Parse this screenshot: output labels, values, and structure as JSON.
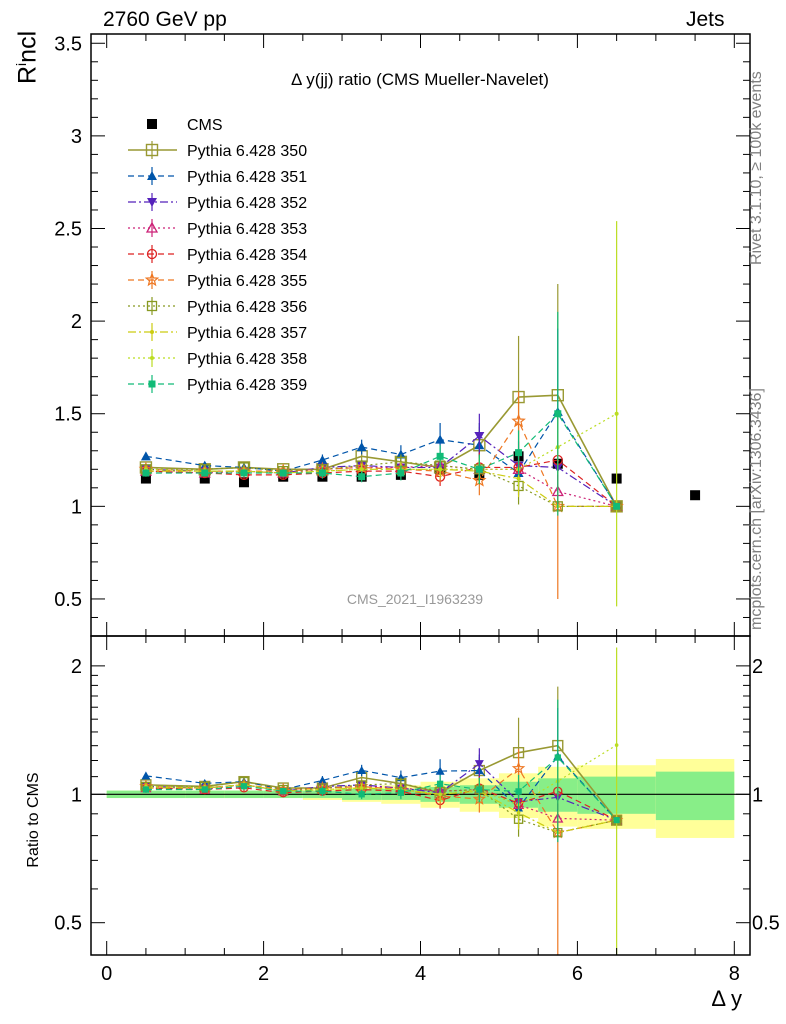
{
  "header": {
    "left": "2760 GeV pp",
    "right": "Jets"
  },
  "side_labels": {
    "rivet": "Rivet 3.1.10, ≥ 100k events",
    "mcplots": "mcplots.cern.ch [arXiv:1306.3436]"
  },
  "watermark": "CMS_2021_I1963239",
  "chart_data": [
    {
      "type": "scatter",
      "panel": "main",
      "title": "Δ y(jj) ratio (CMS Mueller-Navelet)",
      "ylabel": "R^incl",
      "xlabel": "Δ y",
      "xlim": [
        -0.2,
        8.2
      ],
      "ylim": [
        0.3,
        3.55
      ],
      "y_ticks": [
        "0.5",
        "1",
        "1.5",
        "2",
        "2.5",
        "3",
        "3.5"
      ],
      "x_ticks": [
        "0",
        "2",
        "4",
        "6",
        "8"
      ],
      "legend_position": "top-left",
      "series": [
        {
          "name": "CMS",
          "color": "#000000",
          "marker": "filled-square",
          "line": "none",
          "x": [
            0.5,
            1.25,
            1.75,
            2.25,
            2.75,
            3.25,
            3.75,
            4.25,
            4.75,
            5.25,
            5.75,
            6.5,
            7.5
          ],
          "y": [
            1.15,
            1.15,
            1.13,
            1.16,
            1.16,
            1.16,
            1.17,
            1.2,
            1.17,
            1.27,
            1.23,
            1.15,
            1.06
          ]
        },
        {
          "name": "Pythia 6.428 350",
          "color": "#999933",
          "marker": "open-square",
          "line": "solid",
          "x": [
            0.5,
            1.25,
            1.75,
            2.25,
            2.75,
            3.25,
            3.75,
            4.25,
            4.75,
            5.25,
            5.75,
            6.5
          ],
          "y": [
            1.21,
            1.2,
            1.21,
            1.2,
            1.2,
            1.27,
            1.24,
            1.21,
            1.33,
            1.59,
            1.6,
            1.0
          ],
          "err": [
            0.02,
            0.02,
            0.02,
            0.02,
            0.03,
            0.03,
            0.04,
            0.06,
            0.1,
            0.33,
            0.6,
            0.0
          ]
        },
        {
          "name": "Pythia 6.428 351",
          "color": "#0055aa",
          "marker": "filled-triangle-up",
          "line": "dashed",
          "x": [
            0.5,
            1.25,
            1.75,
            2.25,
            2.75,
            3.25,
            3.75,
            4.25,
            4.75,
            5.25,
            5.75,
            6.5
          ],
          "y": [
            1.27,
            1.22,
            1.21,
            1.19,
            1.25,
            1.32,
            1.28,
            1.36,
            1.33,
            1.18,
            1.51,
            1.0
          ],
          "err": [
            0.02,
            0.02,
            0.02,
            0.02,
            0.03,
            0.04,
            0.05,
            0.09,
            0.12,
            0.12,
            0.45,
            0.0
          ]
        },
        {
          "name": "Pythia 6.428 352",
          "color": "#5522bb",
          "marker": "filled-triangle-down",
          "line": "dashdot",
          "x": [
            0.5,
            1.25,
            1.75,
            2.25,
            2.75,
            3.25,
            3.75,
            4.25,
            4.75,
            5.25,
            5.75,
            6.5
          ],
          "y": [
            1.2,
            1.19,
            1.19,
            1.18,
            1.21,
            1.22,
            1.21,
            1.21,
            1.38,
            1.22,
            1.21,
            1.0
          ],
          "err": [
            0.02,
            0.02,
            0.02,
            0.02,
            0.03,
            0.03,
            0.04,
            0.06,
            0.12,
            0.13,
            0.2,
            0.0
          ]
        },
        {
          "name": "Pythia 6.428 353",
          "color": "#cc2277",
          "marker": "open-triangle-up",
          "line": "dotted",
          "x": [
            0.5,
            1.25,
            1.75,
            2.25,
            2.75,
            3.25,
            3.75,
            4.25,
            4.75,
            5.25,
            5.75,
            6.5
          ],
          "y": [
            1.19,
            1.18,
            1.19,
            1.18,
            1.2,
            1.21,
            1.21,
            1.22,
            1.2,
            1.2,
            1.08,
            1.0
          ],
          "err": [
            0.02,
            0.02,
            0.02,
            0.02,
            0.03,
            0.03,
            0.04,
            0.05,
            0.08,
            0.1,
            0.1,
            0.0
          ]
        },
        {
          "name": "Pythia 6.428 354",
          "color": "#dd2222",
          "marker": "open-circle",
          "line": "dashed",
          "x": [
            0.5,
            1.25,
            1.75,
            2.25,
            2.75,
            3.25,
            3.75,
            4.25,
            4.75,
            5.25,
            5.75,
            6.5
          ],
          "y": [
            1.19,
            1.18,
            1.17,
            1.17,
            1.18,
            1.19,
            1.19,
            1.16,
            1.21,
            1.21,
            1.25,
            1.0
          ],
          "err": [
            0.02,
            0.02,
            0.02,
            0.02,
            0.03,
            0.03,
            0.04,
            0.05,
            0.08,
            0.1,
            0.15,
            0.0
          ]
        },
        {
          "name": "Pythia 6.428 355",
          "color": "#ee7722",
          "marker": "open-star",
          "line": "dashed",
          "x": [
            0.5,
            1.25,
            1.75,
            2.25,
            2.75,
            3.25,
            3.75,
            4.25,
            4.75,
            5.25,
            5.75,
            6.5
          ],
          "y": [
            1.2,
            1.19,
            1.19,
            1.19,
            1.2,
            1.21,
            1.2,
            1.19,
            1.14,
            1.46,
            1.0,
            1.0
          ],
          "err": [
            0.02,
            0.02,
            0.02,
            0.02,
            0.03,
            0.03,
            0.04,
            0.06,
            0.08,
            0.16,
            0.5,
            0.0
          ]
        },
        {
          "name": "Pythia 6.428 356",
          "color": "#889922",
          "marker": "open-square-small",
          "line": "dotted",
          "x": [
            0.5,
            1.25,
            1.75,
            2.25,
            2.75,
            3.25,
            3.75,
            4.25,
            4.75,
            5.25,
            5.75,
            6.5
          ],
          "y": [
            1.2,
            1.2,
            1.21,
            1.19,
            1.2,
            1.22,
            1.24,
            1.22,
            1.2,
            1.11,
            1.0,
            1.0
          ],
          "err": [
            0.02,
            0.02,
            0.02,
            0.02,
            0.03,
            0.03,
            0.04,
            0.06,
            0.08,
            0.1,
            0.0,
            0.0
          ]
        },
        {
          "name": "Pythia 6.428 357",
          "color": "#cccc11",
          "marker": "small-dot",
          "line": "dashdot",
          "x": [
            0.5,
            1.25,
            1.75,
            2.25,
            2.75,
            3.25,
            3.75,
            4.25,
            4.75,
            5.25,
            5.75,
            6.5
          ],
          "y": [
            1.19,
            1.19,
            1.19,
            1.18,
            1.19,
            1.2,
            1.2,
            1.2,
            1.19,
            1.15,
            1.0,
            1.0
          ],
          "err": [
            0.02,
            0.02,
            0.02,
            0.02,
            0.03,
            0.03,
            0.04,
            0.05,
            0.07,
            0.1,
            0.0,
            0.0
          ]
        },
        {
          "name": "Pythia 6.428 358",
          "color": "#bbdd22",
          "marker": "small-dot",
          "line": "dotted",
          "x": [
            0.5,
            1.25,
            1.75,
            2.25,
            2.75,
            3.25,
            3.75,
            4.25,
            4.75,
            5.25,
            5.75,
            6.5
          ],
          "y": [
            1.2,
            1.19,
            1.19,
            1.18,
            1.19,
            1.2,
            1.2,
            1.2,
            1.2,
            1.2,
            1.32,
            1.5
          ],
          "err": [
            0.02,
            0.02,
            0.02,
            0.02,
            0.03,
            0.03,
            0.04,
            0.05,
            0.07,
            0.1,
            0.15,
            1.04
          ]
        },
        {
          "name": "Pythia 6.428 359",
          "color": "#11bb77",
          "marker": "filled-square-small",
          "line": "dashed",
          "x": [
            0.5,
            1.25,
            1.75,
            2.25,
            2.75,
            3.25,
            3.75,
            4.25,
            4.75,
            5.25,
            5.75,
            6.5
          ],
          "y": [
            1.18,
            1.18,
            1.18,
            1.18,
            1.18,
            1.16,
            1.18,
            1.27,
            1.2,
            1.29,
            1.5,
            1.0
          ],
          "err": [
            0.02,
            0.02,
            0.02,
            0.02,
            0.03,
            0.03,
            0.04,
            0.06,
            0.08,
            0.12,
            0.55,
            0.0
          ]
        }
      ]
    },
    {
      "type": "scatter",
      "panel": "ratio",
      "ylabel": "Ratio to CMS",
      "xlabel": "Δ y",
      "scale": "log",
      "xlim": [
        -0.2,
        8.2
      ],
      "ylim": [
        0.42,
        2.35
      ],
      "y_ticks": [
        "0.5",
        "1",
        "2"
      ],
      "x_ticks": [
        "0",
        "2",
        "4",
        "6",
        "8"
      ],
      "uncertainty_bands": {
        "x_edges": [
          0,
          1,
          1.5,
          2,
          2.5,
          3,
          3.5,
          4,
          4.5,
          5,
          5.5,
          6,
          7,
          8
        ],
        "inner_half": [
          0.02,
          0.02,
          0.02,
          0.02,
          0.02,
          0.03,
          0.03,
          0.04,
          0.05,
          0.07,
          0.09,
          0.1,
          0.13
        ],
        "outer_half": [
          0.02,
          0.02,
          0.02,
          0.02,
          0.03,
          0.04,
          0.05,
          0.07,
          0.09,
          0.12,
          0.16,
          0.17,
          0.21
        ],
        "inner_color": "#88ee88",
        "outer_color": "#ffff99"
      }
    }
  ]
}
